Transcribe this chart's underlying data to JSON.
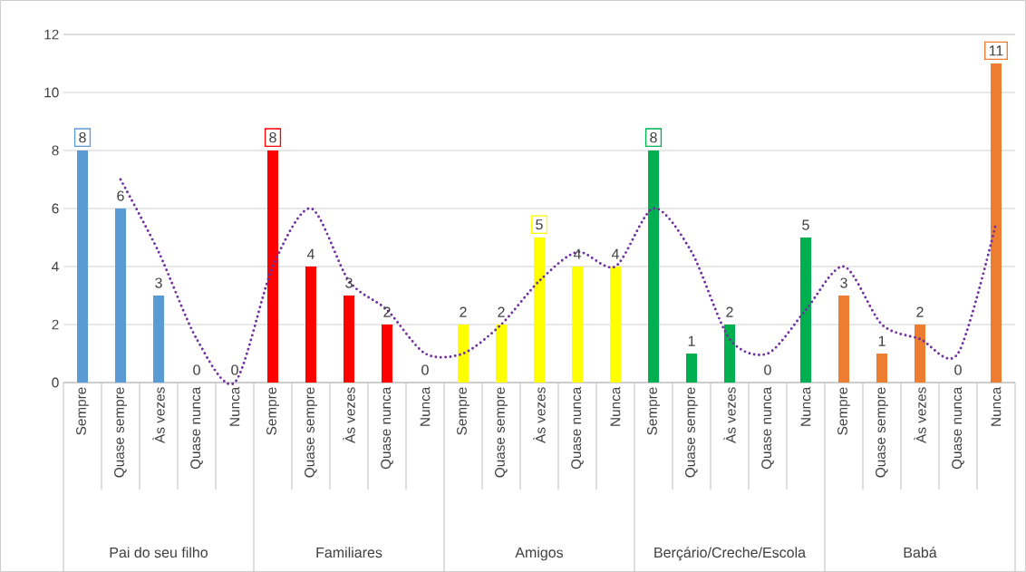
{
  "chart_data": {
    "type": "bar",
    "categories": [
      "Sempre",
      "Quase sempre",
      "Às vezes",
      "Quase nunca",
      "Nunca",
      "Sempre",
      "Quase sempre",
      "Às vezes",
      "Quase nunca",
      "Nunca",
      "Sempre",
      "Quase sempre",
      "Às vezes",
      "Quase nunca",
      "Nunca",
      "Sempre",
      "Quase sempre",
      "Às vezes",
      "Quase nunca",
      "Nunca",
      "Sempre",
      "Quase sempre",
      "Às vezes",
      "Quase nunca",
      "Nunca"
    ],
    "series": [
      {
        "colors": [
          "#5b9bd5",
          "#5b9bd5",
          "#5b9bd5",
          "#5b9bd5",
          "#5b9bd5",
          "#ff0000",
          "#ff0000",
          "#ff0000",
          "#ff0000",
          "#ff0000",
          "#ffff00",
          "#ffff00",
          "#ffff00",
          "#ffff00",
          "#ffff00",
          "#00b050",
          "#00b050",
          "#00b050",
          "#00b050",
          "#00b050",
          "#ed7d31",
          "#ed7d31",
          "#ed7d31",
          "#ed7d31",
          "#ed7d31"
        ],
        "values": [
          8,
          6,
          3,
          0,
          0,
          8,
          4,
          3,
          2,
          0,
          2,
          2,
          5,
          4,
          4,
          8,
          1,
          2,
          0,
          5,
          3,
          1,
          2,
          0,
          11
        ],
        "value_labels": [
          "8",
          "6",
          "3",
          "0",
          "0",
          "8",
          "4",
          "3",
          "2",
          "0",
          "2",
          "2",
          "5",
          "4",
          "4",
          "8",
          "1",
          "2",
          "0",
          "5",
          "3",
          "1",
          "2",
          "0",
          "11"
        ]
      },
      {
        "type": "line",
        "color": "#7030a0",
        "line_style": "dotted",
        "values": [
          null,
          7,
          4.5,
          1.5,
          0,
          4,
          6,
          3.5,
          2.5,
          1,
          1,
          2,
          3.5,
          4.5,
          4,
          6,
          4.5,
          1.5,
          1,
          2.5,
          4,
          2,
          1.5,
          1,
          5.5
        ]
      }
    ],
    "ylim": [
      0,
      12
    ],
    "yticks": [
      0,
      2,
      4,
      6,
      8,
      10,
      12
    ],
    "grid": "y",
    "annotations": [
      "Pai do seu filho",
      "Familiares",
      "Amigos",
      "Berçário/Creche/Escola",
      "Babá"
    ]
  }
}
